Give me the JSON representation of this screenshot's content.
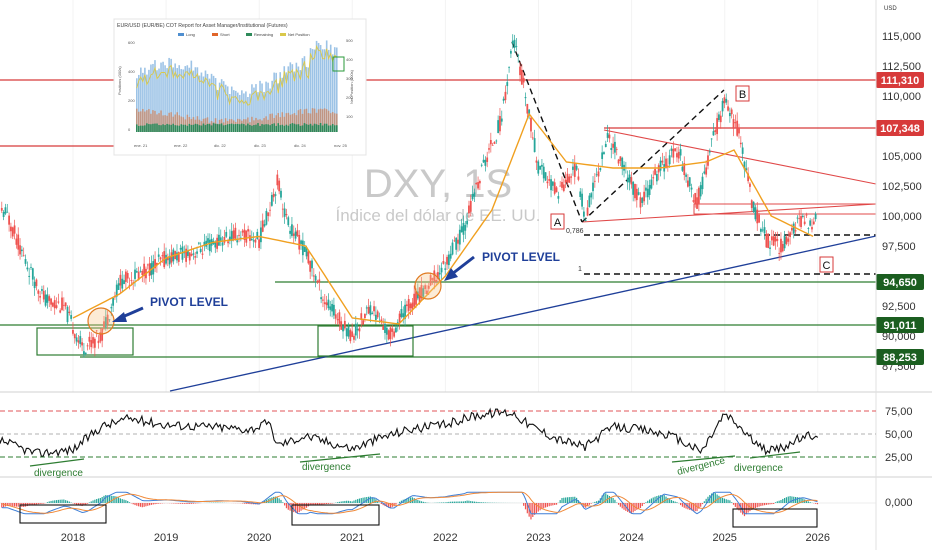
{
  "currency": "USD",
  "symbol": "DXY, 1S",
  "subtitle": "Índice del dólar de EE. UU.",
  "inset": {
    "title": "EUR/USD (EUR/BE) COT Report for Asset Manager/Institutional (Futures)",
    "legend": [
      {
        "label": "Long",
        "color": "#4f8fd0"
      },
      {
        "label": "Short",
        "color": "#e0652a"
      },
      {
        "label": "Remaining",
        "color": "#2e8a5a"
      },
      {
        "label": "Net Position",
        "color": "#d9c84a"
      }
    ],
    "left_axis_label": "Positions (000s)",
    "right_axis_label": "Net Position (000s)",
    "left_ticks": [
      "600",
      "400",
      "200",
      "0"
    ],
    "right_ticks": [
      "500",
      "400",
      "300",
      "200",
      "100"
    ],
    "x_ticks": [
      "ene. 21",
      "ene. 22",
      "dic. 22",
      "dic. 23",
      "dic. 24",
      "nov. 25"
    ]
  },
  "chart_data": [
    {
      "type": "line",
      "title": "DXY, 1S",
      "subtitle": "Índice del dólar de EE. UU.",
      "x_ticks": [
        "2018",
        "2019",
        "2020",
        "2021",
        "2022",
        "2023",
        "2024",
        "2025",
        "2026"
      ],
      "y_ticks": [
        "115,000",
        "112,500",
        "110,000",
        "107,500",
        "105,000",
        "102,500",
        "100,000",
        "97,500",
        "92,500",
        "90,000",
        "87,500"
      ],
      "ylim": [
        86.5,
        117.5
      ],
      "series": [
        {
          "x": [
            2017.0,
            2017.3,
            2017.5,
            2017.7,
            2017.9,
            2018.1,
            2018.3,
            2018.5,
            2018.8,
            2019.0,
            2019.3,
            2019.6,
            2019.8,
            2020.0,
            2020.2,
            2020.3,
            2020.5,
            2020.7,
            2021.0,
            2021.2,
            2021.4,
            2021.6,
            2021.8,
            2022.0,
            2022.2,
            2022.4,
            2022.6,
            2022.73,
            2022.85,
            2023.0,
            2023.2,
            2023.4,
            2023.5,
            2023.75,
            2023.95,
            2024.1,
            2024.3,
            2024.5,
            2024.7,
            2024.9,
            2025.0,
            2025.15,
            2025.3,
            2025.45,
            2025.6,
            2025.8,
            2025.95
          ],
          "values": [
            102.2,
            100.0,
            96.0,
            93.0,
            92.5,
            89.0,
            90.0,
            94.5,
            95.5,
            96.5,
            97.0,
            98.0,
            98.5,
            98.0,
            103.0,
            99.5,
            97.0,
            93.0,
            90.0,
            92.5,
            90.0,
            92.5,
            94.0,
            96.0,
            99.0,
            104.0,
            108.0,
            114.8,
            110.5,
            104.0,
            102.0,
            104.0,
            100.0,
            106.7,
            103.5,
            101.0,
            104.0,
            105.5,
            101.0,
            107.0,
            109.5,
            107.0,
            101.0,
            98.0,
            97.5,
            99.5,
            99.5
          ]
        },
        {
          "x": [
            2018.0,
            2018.5,
            2019.0,
            2019.5,
            2020.0,
            2020.5,
            2021.0,
            2021.5,
            2022.0,
            2022.5,
            2022.9,
            2023.3,
            2023.8,
            2024.3,
            2024.8,
            2025.1,
            2025.5,
            2025.95
          ],
          "values": [
            91.5,
            93.5,
            96.5,
            97.8,
            98.3,
            97.5,
            91.5,
            91.0,
            95.0,
            100.5,
            108.5,
            104.5,
            104.0,
            104.0,
            104.5,
            105.5,
            100.0,
            98.3
          ]
        }
      ]
    },
    {
      "type": "line",
      "y_ticks": [
        "75,00",
        "50,00",
        "25,00"
      ],
      "ylim": [
        18,
        84
      ],
      "series": [
        {
          "x": [
            2017.0,
            2017.3,
            2017.6,
            2018.0,
            2018.3,
            2018.6,
            2019.0,
            2019.5,
            2019.9,
            2020.1,
            2020.2,
            2020.5,
            2021.0,
            2021.3,
            2021.6,
            2022.0,
            2022.3,
            2022.6,
            2022.73,
            2022.9,
            2023.2,
            2023.5,
            2023.8,
            2024.1,
            2024.4,
            2024.75,
            2025.0,
            2025.15,
            2025.4,
            2025.6,
            2025.8,
            2026.0
          ],
          "values": [
            52,
            40,
            29,
            33,
            58,
            67,
            60,
            58,
            55,
            62,
            38,
            48,
            34,
            46,
            55,
            60,
            70,
            74,
            73,
            60,
            45,
            36,
            58,
            55,
            49,
            31,
            72,
            59,
            33,
            34,
            45,
            50
          ]
        }
      ]
    },
    {
      "type": "line",
      "y_ticks": [
        "0,000"
      ]
    }
  ],
  "annotations": {
    "pivot_label_1": "PIVOT LEVEL",
    "pivot_label_2": "PIVOT LEVEL",
    "wave_a": "A",
    "wave_b": "B",
    "wave_c": "C",
    "fib_786": "0,786",
    "fib_1": "1",
    "divergence_1": "divergence",
    "divergence_2": "divergence",
    "divergence_3": "divergence",
    "divergence_4": "divergence"
  },
  "price_tags": {
    "t111": "111,310",
    "t107": "107,348",
    "t94": "94,650",
    "t91": "91,011",
    "t88": "88,253"
  },
  "colors": {
    "red_level": "#d73a3a",
    "green_level": "#2e7d32",
    "trend_blue": "#1f3f99",
    "ma_orange": "#f0a020",
    "rsi_line": "#111111",
    "candle_up": "#26a69a",
    "candle_down": "#ef5350"
  }
}
